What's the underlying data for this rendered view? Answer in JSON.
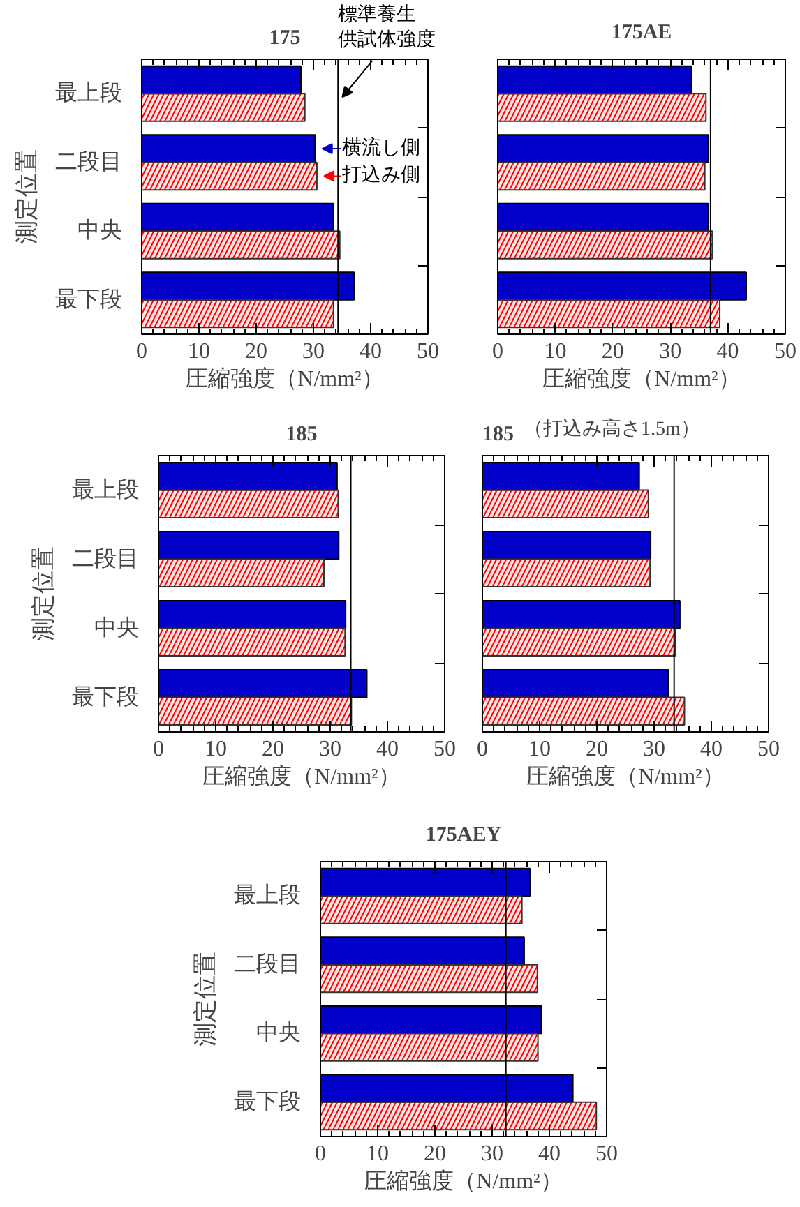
{
  "chart_data": [
    {
      "type": "bar",
      "orientation": "horizontal",
      "title": "175",
      "xlabel": "圧縮強度（N/mm²）",
      "ylabel": "測定位置",
      "categories": [
        "最上段",
        "二段目",
        "中央",
        "最下段"
      ],
      "xlim": [
        0,
        50
      ],
      "xticks": [
        0,
        10,
        20,
        30,
        40,
        50
      ],
      "legend": "right",
      "series": [
        {
          "name": "横流し側",
          "color": "#0000c8",
          "values": [
            27.8,
            30.3,
            33.5,
            37.1
          ]
        },
        {
          "name": "打込み側",
          "color": "#ff0000",
          "values": [
            28.5,
            30.6,
            34.6,
            33.5
          ]
        }
      ],
      "ref_lines": [
        {
          "axis": "x",
          "value": 34.3,
          "label": "標準養生供試体強度"
        }
      ]
    },
    {
      "type": "bar",
      "orientation": "horizontal",
      "title": "175AE",
      "xlabel": "圧縮強度（N/mm²）",
      "categories": [
        null,
        null,
        null,
        null
      ],
      "xlim": [
        0,
        50
      ],
      "xticks": [
        0,
        10,
        20,
        30,
        40,
        50
      ],
      "tick_labels": "x",
      "series": [
        {
          "color": "#0000c8",
          "values": [
            33.7,
            36.6,
            36.6,
            43.2
          ]
        },
        {
          "color": "#ff0000",
          "values": [
            36.2,
            36.0,
            37.3,
            38.6
          ]
        }
      ],
      "ref_lines": [
        {
          "axis": "x",
          "value": 37.0
        }
      ]
    },
    {
      "type": "bar",
      "orientation": "horizontal",
      "title": "185",
      "xlabel": "圧縮強度（N/mm²）",
      "ylabel": "測定位置",
      "categories": [
        "最上段",
        "二段目",
        "中央",
        "最下段"
      ],
      "xlim": [
        0,
        50
      ],
      "xticks": [
        0,
        10,
        20,
        30,
        40,
        50
      ],
      "series": [
        {
          "color": "#0000c8",
          "values": [
            31.2,
            31.5,
            32.7,
            36.4
          ]
        },
        {
          "color": "#ff0000",
          "values": [
            31.4,
            28.9,
            32.6,
            33.7
          ]
        }
      ],
      "ref_lines": [
        {
          "axis": "x",
          "value": 33.6
        }
      ]
    },
    {
      "type": "bar",
      "orientation": "horizontal",
      "title": "185",
      "subtitle": "（打込み高さ1.5m）",
      "xlabel": "圧縮強度（N/mm²）",
      "categories": [
        null,
        null,
        null,
        null
      ],
      "xlim": [
        0,
        50
      ],
      "xticks": [
        0,
        10,
        20,
        30,
        40,
        50
      ],
      "tick_labels": "x",
      "series": [
        {
          "color": "#0000c8",
          "values": [
            27.4,
            29.4,
            34.5,
            32.5
          ]
        },
        {
          "color": "#ff0000",
          "values": [
            29.0,
            29.3,
            33.7,
            35.3
          ]
        }
      ],
      "ref_lines": [
        {
          "axis": "x",
          "value": 33.5
        }
      ]
    },
    {
      "type": "bar",
      "orientation": "horizontal",
      "title": "175AEY",
      "xlabel": "圧縮強度（N/mm²）",
      "ylabel": "測定位置",
      "categories": [
        "最上段",
        "二段目",
        "中央",
        "最下段"
      ],
      "xlim": [
        0,
        50
      ],
      "xticks": [
        0,
        10,
        20,
        30,
        40,
        50
      ],
      "series": [
        {
          "color": "#0000c8",
          "values": [
            36.6,
            35.6,
            38.6,
            44.1
          ]
        },
        {
          "color": "#ff0000",
          "values": [
            35.2,
            37.9,
            38.0,
            48.2
          ]
        }
      ],
      "ref_lines": [
        {
          "axis": "x",
          "value": 32.4
        }
      ]
    }
  ]
}
